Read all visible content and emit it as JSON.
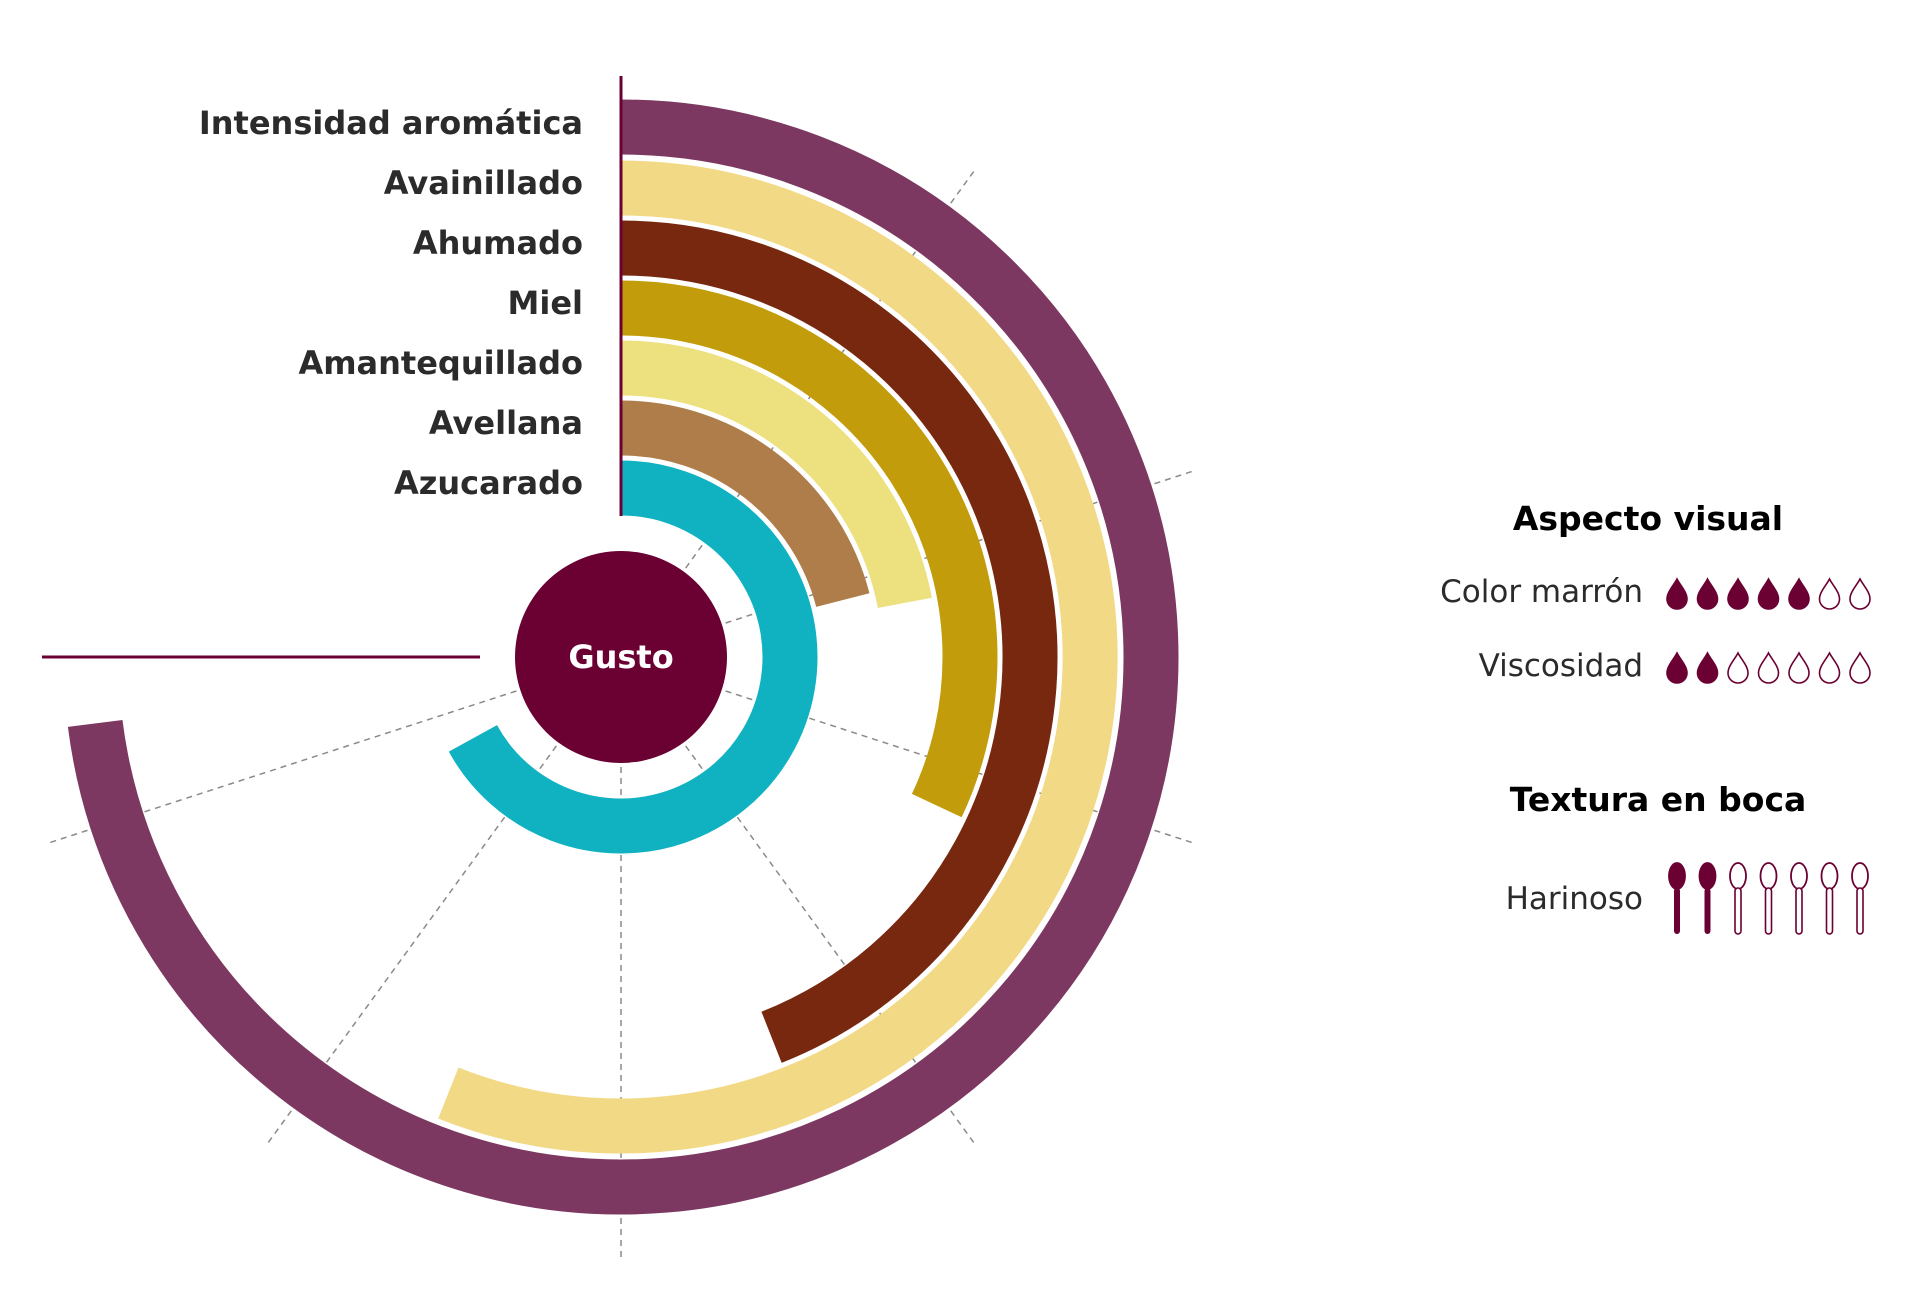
{
  "chart_data": {
    "type": "radial-bar",
    "center_label": "Gusto",
    "scale_max": 10,
    "series": [
      {
        "name": "Intensidad aromática",
        "value": 7.3,
        "color": "#7d3862"
      },
      {
        "name": "Avainillado",
        "value": 5.6,
        "color": "#f2d985"
      },
      {
        "name": "Ahumado",
        "value": 4.4,
        "color": "#77280f"
      },
      {
        "name": "Miel",
        "value": 3.2,
        "color": "#c29c0b"
      },
      {
        "name": "Amantequillado",
        "value": 2.2,
        "color": "#ede07f"
      },
      {
        "name": "Avellana",
        "value": 2.1,
        "color": "#ae7d4a"
      },
      {
        "name": "Azucarado",
        "value": 6.7,
        "color": "#10b2c2"
      }
    ],
    "center_color": "#6b0033"
  },
  "ratings": {
    "accent_color": "#6b0033",
    "aspecto": {
      "title": "Aspecto visual",
      "items": [
        {
          "label": "Color marrón",
          "value": 5,
          "max": 7,
          "icon": "drop-icon"
        },
        {
          "label": "Viscosidad",
          "value": 2,
          "max": 7,
          "icon": "drop-icon"
        }
      ]
    },
    "textura": {
      "title": "Textura en boca",
      "items": [
        {
          "label": "Harinoso",
          "value": 2,
          "max": 7,
          "icon": "spoon-icon"
        }
      ]
    }
  }
}
